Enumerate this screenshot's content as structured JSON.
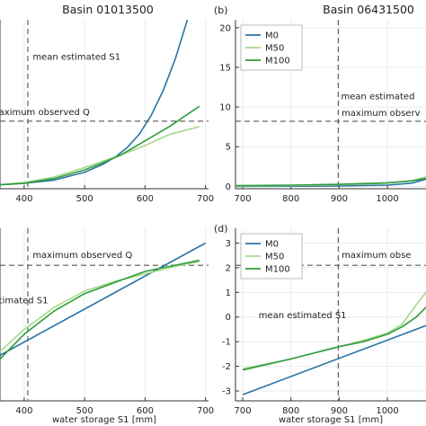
{
  "chart_data": [
    {
      "panel": "(a)",
      "panel_label_visible": false,
      "type": "line",
      "title": "Basin 01013500",
      "xlabel": "",
      "ylabel": "",
      "xlim": [
        360,
        705
      ],
      "ylim": [
        -0.5,
        21
      ],
      "xticks": [
        400,
        500,
        600,
        700
      ],
      "yticks": [],
      "grid": true,
      "legend": "none",
      "vline": {
        "x": 406,
        "label": "mean estimated S1",
        "label_pos": [
          414,
          15.9
        ]
      },
      "hline": {
        "y": 8.1,
        "label": "aximum observed Q",
        "label_pos": [
          358,
          8.9
        ]
      },
      "series": [
        {
          "name": "M0",
          "color": "#2874a6",
          "x": [
            360,
            400,
            450,
            500,
            530,
            550,
            570,
            590,
            610,
            630,
            650,
            670
          ],
          "y": [
            0.0,
            0.2,
            0.6,
            1.6,
            2.6,
            3.5,
            4.7,
            6.4,
            8.8,
            12.0,
            16.0,
            21.0
          ]
        },
        {
          "name": "M50",
          "color": "#a6d98c",
          "x": [
            360,
            400,
            450,
            500,
            530,
            560,
            600,
            640,
            690
          ],
          "y": [
            0.0,
            0.3,
            1.0,
            2.2,
            3.0,
            3.8,
            5.0,
            6.4,
            7.4
          ]
        },
        {
          "name": "M100",
          "color": "#2e9c3c",
          "x": [
            360,
            400,
            450,
            500,
            530,
            560,
            600,
            640,
            690
          ],
          "y": [
            0.0,
            0.2,
            0.8,
            1.9,
            2.8,
            3.8,
            5.6,
            7.4,
            10.0
          ]
        }
      ]
    },
    {
      "panel": "(b)",
      "type": "line",
      "title": "Basin 06431500",
      "xlabel": "",
      "ylabel": "",
      "xlim": [
        685,
        1080
      ],
      "ylim": [
        -0.3,
        21
      ],
      "xticks": [
        700,
        800,
        900,
        1000
      ],
      "yticks": [
        0,
        5,
        10,
        15,
        20
      ],
      "grid": true,
      "legend": "top-left",
      "vline": {
        "x": 898,
        "label": "mean estimated",
        "label_pos": [
          904,
          11.0
        ]
      },
      "hline": {
        "y": 8.2,
        "label": "maximum observ",
        "label_pos": [
          905,
          8.9
        ]
      },
      "series": [
        {
          "name": "M0",
          "color": "#2874a6",
          "x": [
            685,
            800,
            900,
            1000,
            1050,
            1080
          ],
          "y": [
            0.0,
            0.02,
            0.05,
            0.15,
            0.4,
            0.9
          ]
        },
        {
          "name": "M50",
          "color": "#a6d98c",
          "x": [
            685,
            800,
            900,
            1000,
            1050,
            1080
          ],
          "y": [
            0.05,
            0.1,
            0.2,
            0.4,
            0.7,
            1.2
          ]
        },
        {
          "name": "M100",
          "color": "#2e9c3c",
          "x": [
            685,
            800,
            900,
            1000,
            1050,
            1080
          ],
          "y": [
            0.1,
            0.15,
            0.25,
            0.45,
            0.7,
            1.0
          ]
        }
      ]
    },
    {
      "panel": "(c)",
      "panel_label_visible": false,
      "type": "line",
      "title": "",
      "xlabel": "water storage S1 [mm]",
      "ylabel": "",
      "xlim": [
        360,
        705
      ],
      "ylim": [
        -3.4,
        3.6
      ],
      "xticks": [
        400,
        500,
        600,
        700
      ],
      "yticks": [],
      "grid": true,
      "legend": "none",
      "vline": {
        "x": 406,
        "label": "timated S1",
        "label_pos": [
          358,
          0.55
        ]
      },
      "hline": {
        "y": 2.1,
        "label": "maximum observed Q",
        "label_pos": [
          414,
          2.4
        ]
      },
      "series": [
        {
          "name": "M0",
          "color": "#2874a6",
          "x": [
            360,
            700
          ],
          "y": [
            -1.55,
            3.0
          ]
        },
        {
          "name": "M50",
          "color": "#a6d98c",
          "x": [
            360,
            400,
            450,
            500,
            550,
            600,
            650,
            690
          ],
          "y": [
            -1.4,
            -0.5,
            0.4,
            1.05,
            1.45,
            1.75,
            2.05,
            2.25
          ]
        },
        {
          "name": "M100",
          "color": "#2e9c3c",
          "x": [
            360,
            400,
            450,
            500,
            550,
            600,
            650,
            690
          ],
          "y": [
            -1.7,
            -0.7,
            0.25,
            0.95,
            1.4,
            1.85,
            2.1,
            2.3
          ]
        }
      ]
    },
    {
      "panel": "(d)",
      "type": "line",
      "title": "",
      "xlabel": "water storage S1 [mm]",
      "ylabel": "",
      "xlim": [
        685,
        1080
      ],
      "ylim": [
        -3.4,
        3.6
      ],
      "xticks": [
        700,
        800,
        900,
        1000
      ],
      "yticks": [
        -3,
        -2,
        -1,
        0,
        1,
        2,
        3
      ],
      "grid": true,
      "legend": "top-left",
      "vline": {
        "x": 898,
        "label": "mean estimated S1",
        "label_pos": [
          733,
          -0.05
        ]
      },
      "hline": {
        "y": 2.1,
        "label": "maximum obse",
        "label_pos": [
          905,
          2.4
        ]
      },
      "series": [
        {
          "name": "M0",
          "color": "#2874a6",
          "x": [
            700,
            1080
          ],
          "y": [
            -3.15,
            -0.35
          ]
        },
        {
          "name": "M50",
          "color": "#a6d98c",
          "x": [
            700,
            800,
            900,
            950,
            1000,
            1030,
            1060,
            1080
          ],
          "y": [
            -2.1,
            -1.7,
            -1.2,
            -0.95,
            -0.65,
            -0.3,
            0.5,
            1.0
          ]
        },
        {
          "name": "M100",
          "color": "#2e9c3c",
          "x": [
            700,
            800,
            900,
            950,
            1000,
            1030,
            1060,
            1080
          ],
          "y": [
            -2.15,
            -1.7,
            -1.2,
            -1.0,
            -0.7,
            -0.4,
            0.0,
            0.4
          ]
        }
      ]
    }
  ]
}
